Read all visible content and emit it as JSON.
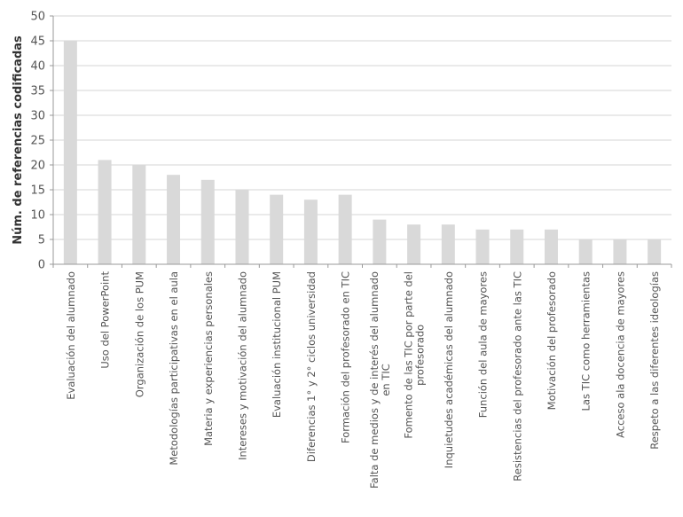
{
  "chart_data": {
    "type": "bar",
    "ylabel": "Núm.  de referencias codificadas",
    "xlabel": "",
    "ylim": [
      0,
      50
    ],
    "yticks": [
      0,
      5,
      10,
      15,
      20,
      25,
      30,
      35,
      40,
      45,
      50
    ],
    "grid": true,
    "bar_color": "#d9d9d9",
    "categories": [
      [
        "Evaluación del alumnado"
      ],
      [
        "Uso del PowerPoint"
      ],
      [
        "Organización de los PUM"
      ],
      [
        "Metodologías participativas en el aula"
      ],
      [
        "Materia y experiencias personales"
      ],
      [
        "Intereses y motivación del alumnado"
      ],
      [
        "Evaluación institucional PUM"
      ],
      [
        "Diferencias 1° y 2° ciclos universidad"
      ],
      [
        "Formación del profesorado en TIC"
      ],
      [
        "Falta de medios y de interés del alumnado",
        "en TIC"
      ],
      [
        "Fomento de las TIC por parte del",
        "profesorado"
      ],
      [
        "Inquietudes académicas del alumnado"
      ],
      [
        "Función del aula de mayores"
      ],
      [
        "Resistencias del profesorado ante las TIC"
      ],
      [
        "Motivación del profesorado"
      ],
      [
        "Las TIC como herramientas"
      ],
      [
        "Acceso ala docencia de mayores"
      ],
      [
        "Respeto a las diferentes ideologías"
      ]
    ],
    "values": [
      45,
      21,
      20,
      18,
      17,
      15,
      14,
      13,
      14,
      9,
      8,
      8,
      7,
      7,
      7,
      5,
      5,
      5
    ]
  }
}
